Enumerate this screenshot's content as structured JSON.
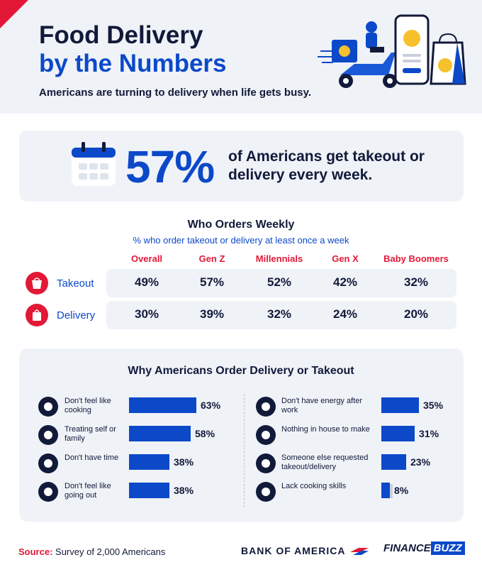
{
  "header": {
    "title_line1": "Food Delivery",
    "title_line2": "by the Numbers",
    "subtitle": "Americans are turning to delivery when life gets busy."
  },
  "stat": {
    "percent": "57%",
    "text": "of Americans get takeout or delivery every week."
  },
  "weekly": {
    "title": "Who Orders Weekly",
    "subtitle": "% who order takeout or delivery at least once a week",
    "columns": [
      "Overall",
      "Gen Z",
      "Millennials",
      "Gen X",
      "Baby Boomers"
    ],
    "rows": [
      {
        "label": "Takeout",
        "icon": "takeout-box-icon",
        "values": [
          "49%",
          "57%",
          "52%",
          "42%",
          "32%"
        ]
      },
      {
        "label": "Delivery",
        "icon": "shopping-bag-icon",
        "values": [
          "30%",
          "39%",
          "32%",
          "24%",
          "20%"
        ]
      }
    ]
  },
  "reasons": {
    "title": "Why Americans Order Delivery or Takeout",
    "left": [
      {
        "label": "Don't feel like cooking",
        "value": "63%",
        "pct": 63,
        "icon": "pot-icon"
      },
      {
        "label": "Treating self or family",
        "value": "58%",
        "pct": 58,
        "icon": "cupcake-icon"
      },
      {
        "label": "Don't have time",
        "value": "38%",
        "pct": 38,
        "icon": "hourglass-icon"
      },
      {
        "label": "Don't feel like going out",
        "value": "38%",
        "pct": 38,
        "icon": "house-icon"
      }
    ],
    "right": [
      {
        "label": "Don't have energy after work",
        "value": "35%",
        "pct": 35,
        "icon": "low-battery-icon"
      },
      {
        "label": "Nothing in house to make",
        "value": "31%",
        "pct": 31,
        "icon": "fridge-icon"
      },
      {
        "label": "Someone else requested takeout/delivery",
        "value": "23%",
        "pct": 23,
        "icon": "speech-bubble-icon"
      },
      {
        "label": "Lack cooking skills",
        "value": "8%",
        "pct": 8,
        "icon": "chef-hat-icon"
      }
    ]
  },
  "footer": {
    "source_label": "Source:",
    "source_text": "Survey of 2,000 Americans",
    "brand1": "BANK OF AMERICA",
    "brand2a": "FINANCE",
    "brand2b": "BUZZ"
  },
  "colors": {
    "navy": "#121a3a",
    "blue": "#0c49c9",
    "red": "#e31837",
    "panel": "#eff2f7"
  }
}
